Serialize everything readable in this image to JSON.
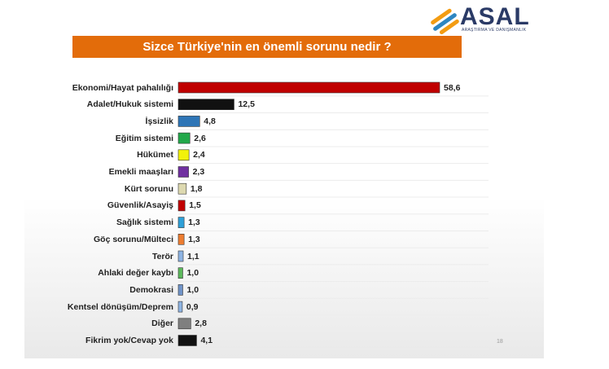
{
  "header": {
    "brand": "ASAL",
    "brand_sub": "ARAŞTIRMA VE DANIŞMANLIK",
    "page_number": "18"
  },
  "chart_data": {
    "type": "bar",
    "orientation": "horizontal",
    "title": "Sizce Türkiye'nin en önemli sorunu nedir ?",
    "xlabel": "",
    "ylabel": "",
    "xlim": [
      0,
      60
    ],
    "categories": [
      "Ekonomi/Hayat pahalılığı",
      "Adalet/Hukuk sistemi",
      "İşsizlik",
      "Eğitim sistemi",
      "Hükümet",
      "Emekli maaşları",
      "Kürt sorunu",
      "Güvenlik/Asayiş",
      "Sağlık sistemi",
      "Göç sorunu/Mülteci",
      "Terör",
      "Ahlaki değer kaybı",
      "Demokrasi",
      "Kentsel dönüşüm/Deprem",
      "Diğer",
      "Fikrim yok/Cevap yok"
    ],
    "values": [
      58.6,
      12.5,
      4.8,
      2.6,
      2.4,
      2.3,
      1.8,
      1.5,
      1.3,
      1.3,
      1.1,
      1.0,
      1.0,
      0.9,
      2.8,
      4.1
    ],
    "value_labels": [
      "58,6",
      "12,5",
      "4,8",
      "2,6",
      "2,4",
      "2,3",
      "1,8",
      "1,5",
      "1,3",
      "1,3",
      "1,1",
      "1,0",
      "1,0",
      "0,9",
      "2,8",
      "4,1"
    ],
    "colors": [
      "#c00000",
      "#111111",
      "#2e75b6",
      "#22a84a",
      "#f2f20a",
      "#7030a0",
      "#ddd9b0",
      "#c00000",
      "#2fa0d8",
      "#ed7d31",
      "#8eb4e3",
      "#5cb85c",
      "#6f93c8",
      "#8eb4e3",
      "#7f7f7f",
      "#111111"
    ]
  }
}
